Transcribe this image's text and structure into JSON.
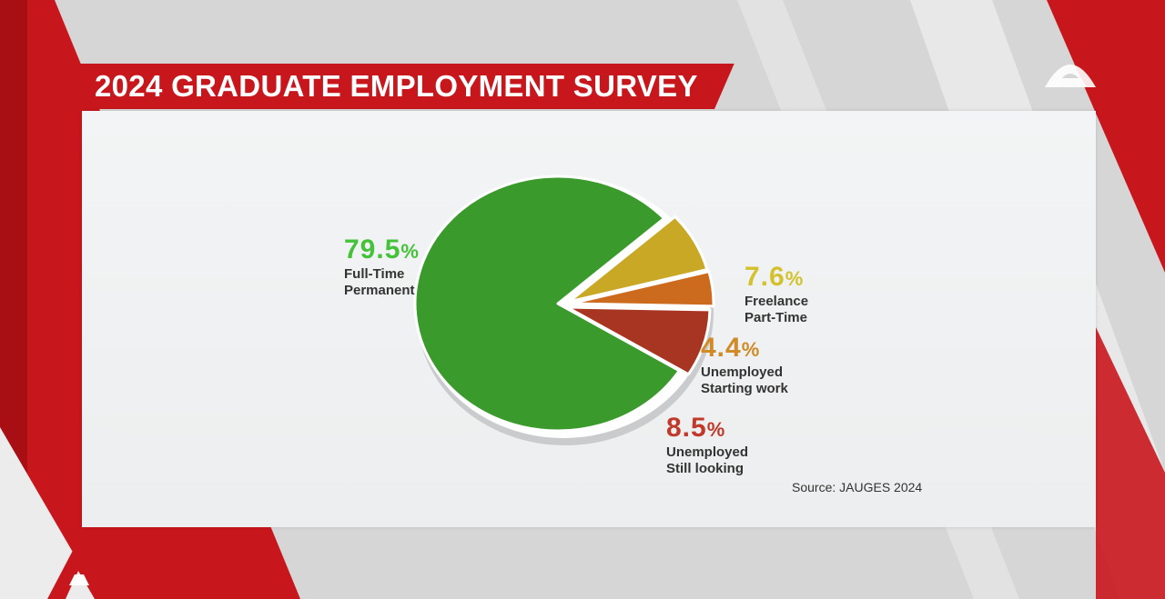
{
  "title": "2024 GRADUATE EMPLOYMENT SURVEY",
  "source": "Source: JAUGES 2024",
  "colors": {
    "brand_red": "#c8161d",
    "full_time": "#3a9a2c",
    "freelance": "#c9a825",
    "starting_work": "#cc6a1e",
    "still_looking": "#a83422"
  },
  "chart_data": {
    "type": "pie",
    "title": "",
    "slices": [
      {
        "label_lines": [
          "Full-Time",
          "Permanent"
        ],
        "value": 79.5,
        "value_text": "79.5",
        "color": "#3a9a2c",
        "label_color": "#46c23a"
      },
      {
        "label_lines": [
          "Freelance",
          "Part-Time"
        ],
        "value": 7.6,
        "value_text": "7.6",
        "color": "#c9a825",
        "label_color": "#d4c12e"
      },
      {
        "label_lines": [
          "Unemployed",
          "Starting work"
        ],
        "value": 4.4,
        "value_text": "4.4",
        "color": "#cc6a1e",
        "label_color": "#d08a26"
      },
      {
        "label_lines": [
          "Unemployed",
          "Still looking"
        ],
        "value": 8.5,
        "value_text": "8.5",
        "color": "#a83422",
        "label_color": "#c0392b"
      }
    ],
    "percent_sign": "%",
    "legend": "none"
  },
  "icons": [
    "broadcaster-logo-icon",
    "broadcaster-logo-icon"
  ]
}
